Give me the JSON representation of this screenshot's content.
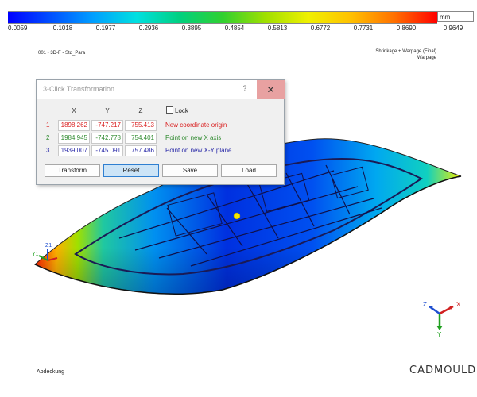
{
  "legend": {
    "unit": "mm",
    "values": [
      "0.0059",
      "0.1018",
      "0.1977",
      "0.2936",
      "0.3895",
      "0.4854",
      "0.5813",
      "0.6772",
      "0.7731",
      "0.8690",
      "0.9649"
    ],
    "gradient": [
      "#0000ff",
      "#0050ff",
      "#00a0ff",
      "#00e0e0",
      "#00d080",
      "#30d030",
      "#a0e000",
      "#f0f000",
      "#ffc000",
      "#ff7000",
      "#ff0000"
    ]
  },
  "model_name": "001 - 3D-F - Std_Para",
  "result": {
    "title_line1": "Shrinkage + Warpage (Final)",
    "title_line2": "Warpage"
  },
  "footer_label": "Abdeckung",
  "brand": "CADMOULD",
  "triad": {
    "z": "Z",
    "x": "X",
    "y": "Y"
  },
  "origin_triad": {
    "z": "Z1",
    "y": "Y1"
  },
  "dialog": {
    "title": "3-Click Transformation",
    "help": "?",
    "close": "✕",
    "col_x": "X",
    "col_y": "Y",
    "col_z": "Z",
    "lock_label": "Lock",
    "rows": [
      {
        "num": "1",
        "x": "1898.262",
        "y": "-747.217",
        "z": "755.413",
        "desc": "New coordinate origin",
        "color": "#d92020"
      },
      {
        "num": "2",
        "x": "1984.945",
        "y": "-742.778",
        "z": "754.401",
        "desc": "Point on new X axis",
        "color": "#2f8a2f"
      },
      {
        "num": "3",
        "x": "1939.007",
        "y": "-745.091",
        "z": "757.486",
        "desc": "Point on new X-Y plane",
        "color": "#2a2aa8"
      }
    ],
    "buttons": {
      "transform": "Transform",
      "reset": "Reset",
      "save": "Save",
      "load": "Load"
    }
  }
}
